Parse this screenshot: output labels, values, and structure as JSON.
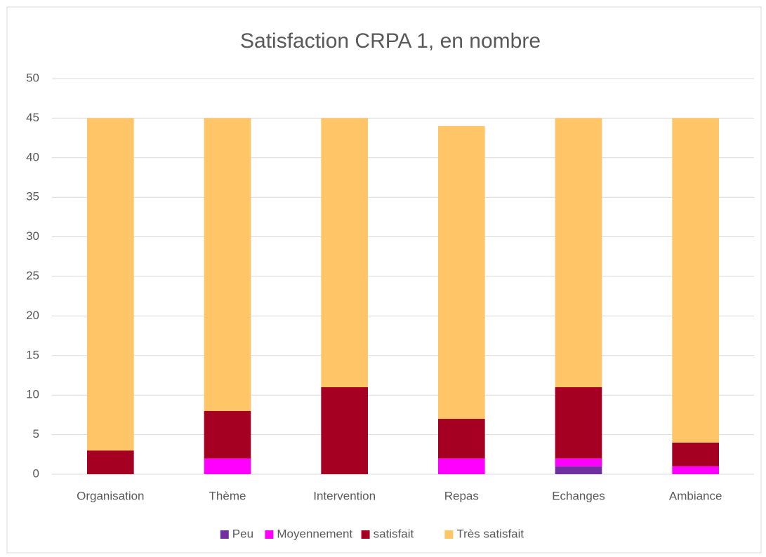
{
  "chart_data": {
    "type": "stacked_bar",
    "title": "Satisfaction CRPA 1, en nombre",
    "categories": [
      "Organisation",
      "Thème",
      "Intervention",
      "Repas",
      "Echanges",
      "Ambiance"
    ],
    "series": [
      {
        "name": "Peu",
        "color": "#7030a0",
        "values": [
          0,
          0,
          0,
          0,
          1,
          0
        ]
      },
      {
        "name": "Moyennement",
        "color": "#ff00ff",
        "values": [
          0,
          2,
          0,
          2,
          1,
          1
        ]
      },
      {
        "name": "satisfait",
        "color": "#a50021",
        "values": [
          3,
          6,
          11,
          5,
          9,
          3
        ]
      },
      {
        "name": "Très satisfait",
        "color": "#ffc566",
        "values": [
          42,
          37,
          34,
          37,
          34,
          41
        ]
      }
    ],
    "ylim": [
      0,
      50
    ],
    "yticks": [
      0,
      5,
      10,
      15,
      20,
      25,
      30,
      35,
      40,
      45,
      50
    ],
    "grid": true,
    "legend": "bottom"
  }
}
